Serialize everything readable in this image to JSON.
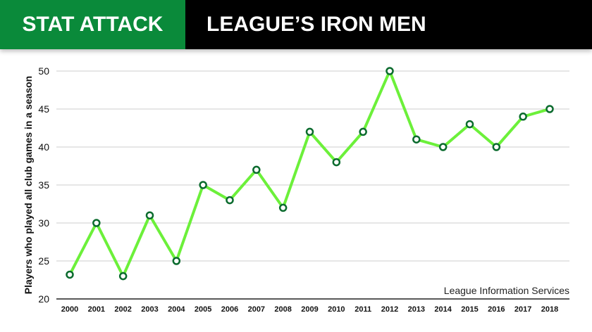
{
  "header": {
    "left": "STAT ATTACK",
    "right": "LEAGUE’S IRON MEN"
  },
  "colors": {
    "header_green": "#0a8a3a",
    "line": "#6cf03a",
    "marker": "#0b6b2e"
  },
  "chart_data": {
    "type": "line",
    "title": "LEAGUE’S IRON MEN",
    "xlabel": "",
    "ylabel": "Players who played all club games in a season",
    "source": "League Information Services",
    "ylim": [
      20,
      50
    ],
    "yticks": [
      20,
      25,
      30,
      35,
      40,
      45,
      50
    ],
    "grid": true,
    "categories": [
      "2000",
      "2001",
      "2002",
      "2003",
      "2004",
      "2005",
      "2006",
      "2007",
      "2008",
      "2009",
      "2010",
      "2011",
      "2012",
      "2013",
      "2014",
      "2015",
      "2016",
      "2017",
      "2018"
    ],
    "values": [
      23.2,
      30,
      23,
      31,
      25,
      35,
      33,
      37,
      32,
      42,
      38,
      42,
      50,
      41,
      40,
      43,
      40,
      44,
      45
    ]
  }
}
